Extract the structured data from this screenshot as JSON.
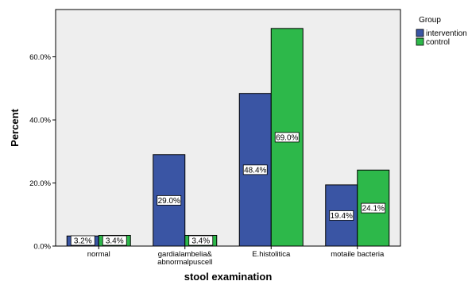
{
  "chart_data": {
    "type": "bar",
    "xlabel": "stool examination",
    "ylabel": "Percent",
    "categories": [
      [
        "normal"
      ],
      [
        "gardialambelia&",
        "abnormalpuscell"
      ],
      [
        "E.histolitica"
      ],
      [
        "motaile bacteria"
      ]
    ],
    "series": [
      {
        "name": "intervention",
        "values": [
          3.2,
          29.0,
          48.4,
          19.4
        ],
        "color": "#3a55a4"
      },
      {
        "name": "control",
        "values": [
          3.4,
          3.4,
          69.0,
          24.1
        ],
        "color": "#2db84a"
      }
    ],
    "data_labels": [
      [
        "3.2%",
        "29.0%",
        "48.4%",
        "19.4%"
      ],
      [
        "3.4%",
        "3.4%",
        "69.0%",
        "24.1%"
      ]
    ],
    "yticks": [
      {
        "value": 0,
        "label": "0.0%"
      },
      {
        "value": 20,
        "label": "20.0%"
      },
      {
        "value": 40,
        "label": "40.0%"
      },
      {
        "value": 60,
        "label": "60.0%"
      }
    ],
    "ylim": [
      0,
      75
    ],
    "legend": {
      "title": "Group",
      "labels": [
        "intervention",
        "control"
      ],
      "placement": "right"
    },
    "plot_background": "#eeeeee",
    "grid": false
  }
}
